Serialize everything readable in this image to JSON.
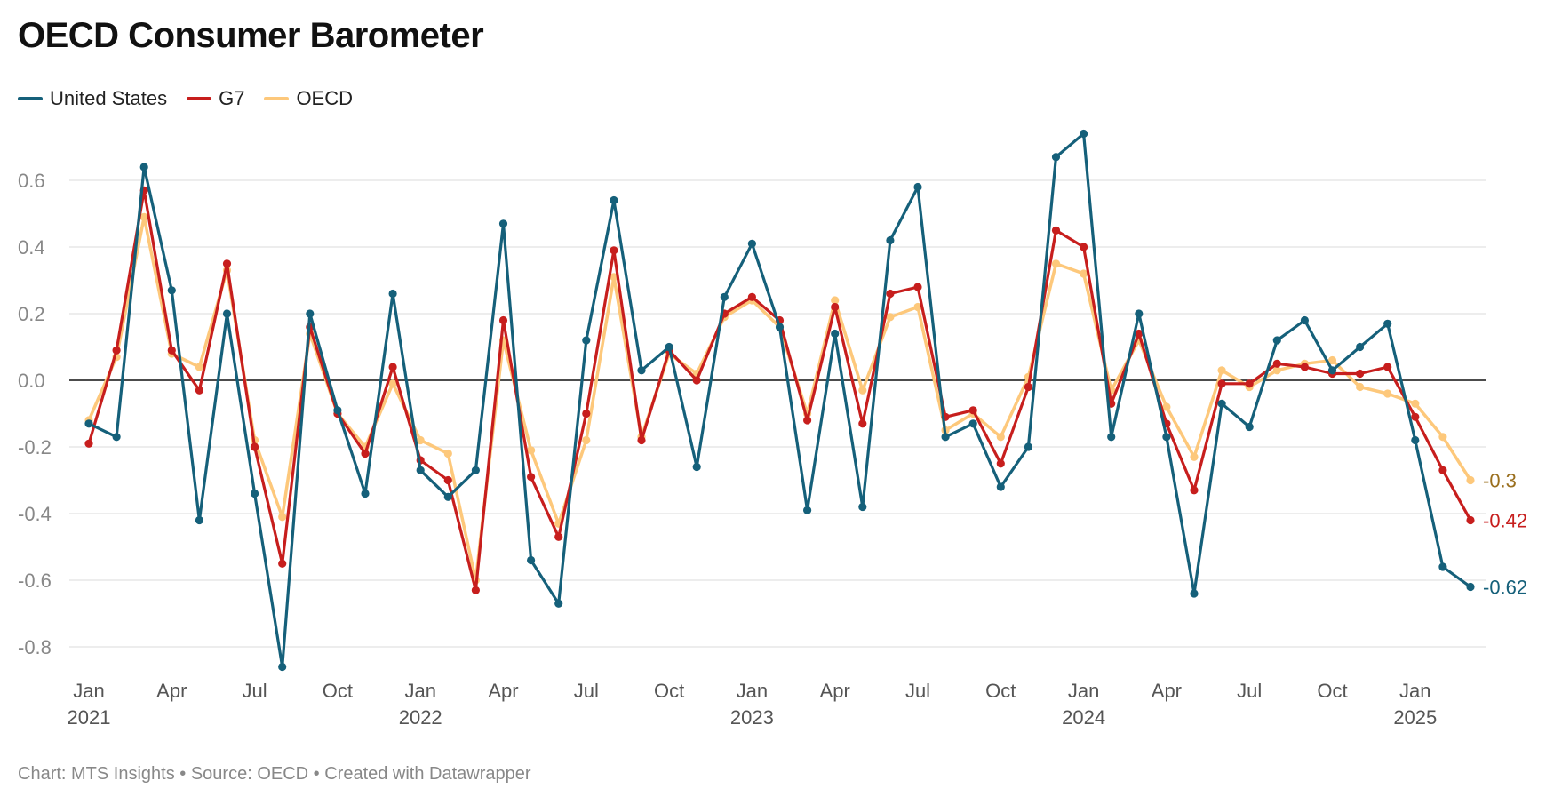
{
  "title": "OECD Consumer Barometer",
  "footer": "Chart: MTS Insights • Source: OECD • Created with Datawrapper",
  "chart_data": {
    "type": "line",
    "title": "OECD Consumer Barometer",
    "xlabel": "",
    "ylabel": "",
    "ylim": [
      -0.8,
      0.6
    ],
    "y_ticks": [
      0.6,
      0.4,
      0.2,
      0.0,
      -0.2,
      -0.4,
      -0.6,
      -0.8
    ],
    "y_tick_labels": [
      "0.6",
      "0.4",
      "0.2",
      "0.0",
      "-0.2",
      "-0.4",
      "-0.6",
      "-0.8"
    ],
    "grid": true,
    "legend_position": "top-left",
    "x": [
      "2021-01",
      "2021-02",
      "2021-03",
      "2021-04",
      "2021-05",
      "2021-06",
      "2021-07",
      "2021-08",
      "2021-09",
      "2021-10",
      "2021-11",
      "2021-12",
      "2022-01",
      "2022-02",
      "2022-03",
      "2022-04",
      "2022-05",
      "2022-06",
      "2022-07",
      "2022-08",
      "2022-09",
      "2022-10",
      "2022-11",
      "2022-12",
      "2023-01",
      "2023-02",
      "2023-03",
      "2023-04",
      "2023-05",
      "2023-06",
      "2023-07",
      "2023-08",
      "2023-09",
      "2023-10",
      "2023-11",
      "2023-12",
      "2024-01",
      "2024-02",
      "2024-03",
      "2024-04",
      "2024-05",
      "2024-06",
      "2024-07",
      "2024-08",
      "2024-09",
      "2024-10",
      "2024-11",
      "2024-12",
      "2025-01",
      "2025-02",
      "2025-03"
    ],
    "x_ticks": [
      {
        "index": 0,
        "month": "Jan",
        "year": "2021"
      },
      {
        "index": 3,
        "month": "Apr",
        "year": ""
      },
      {
        "index": 6,
        "month": "Jul",
        "year": ""
      },
      {
        "index": 9,
        "month": "Oct",
        "year": ""
      },
      {
        "index": 12,
        "month": "Jan",
        "year": "2022"
      },
      {
        "index": 15,
        "month": "Apr",
        "year": ""
      },
      {
        "index": 18,
        "month": "Jul",
        "year": ""
      },
      {
        "index": 21,
        "month": "Oct",
        "year": ""
      },
      {
        "index": 24,
        "month": "Jan",
        "year": "2023"
      },
      {
        "index": 27,
        "month": "Apr",
        "year": ""
      },
      {
        "index": 30,
        "month": "Jul",
        "year": ""
      },
      {
        "index": 33,
        "month": "Oct",
        "year": ""
      },
      {
        "index": 36,
        "month": "Jan",
        "year": "2024"
      },
      {
        "index": 39,
        "month": "Apr",
        "year": ""
      },
      {
        "index": 42,
        "month": "Jul",
        "year": ""
      },
      {
        "index": 45,
        "month": "Oct",
        "year": ""
      },
      {
        "index": 48,
        "month": "Jan",
        "year": "2025"
      }
    ],
    "series": [
      {
        "name": "OECD",
        "color": "#fdc87b",
        "end_label": "-0.3",
        "end_label_color": "#9a6f1e",
        "values": [
          -0.12,
          0.07,
          0.49,
          0.08,
          0.04,
          0.33,
          -0.18,
          -0.41,
          0.14,
          -0.1,
          -0.2,
          -0.01,
          -0.18,
          -0.22,
          -0.6,
          0.12,
          -0.21,
          -0.43,
          -0.18,
          0.31,
          -0.17,
          0.08,
          0.02,
          0.19,
          0.24,
          0.16,
          -0.1,
          0.24,
          -0.03,
          0.19,
          0.22,
          -0.15,
          -0.1,
          -0.17,
          0.01,
          0.35,
          0.32,
          -0.03,
          0.12,
          -0.08,
          -0.23,
          0.03,
          -0.02,
          0.03,
          0.05,
          0.06,
          -0.02,
          -0.04,
          -0.07,
          -0.17,
          -0.3
        ]
      },
      {
        "name": "G7",
        "color": "#c71e1d",
        "end_label": "-0.42",
        "end_label_color": "#c71e1d",
        "values": [
          -0.19,
          0.09,
          0.57,
          0.09,
          -0.03,
          0.35,
          -0.2,
          -0.55,
          0.16,
          -0.1,
          -0.22,
          0.04,
          -0.24,
          -0.3,
          -0.63,
          0.18,
          -0.29,
          -0.47,
          -0.1,
          0.39,
          -0.18,
          0.09,
          0.0,
          0.2,
          0.25,
          0.18,
          -0.12,
          0.22,
          -0.13,
          0.26,
          0.28,
          -0.11,
          -0.09,
          -0.25,
          -0.02,
          0.45,
          0.4,
          -0.07,
          0.14,
          -0.13,
          -0.33,
          -0.01,
          -0.01,
          0.05,
          0.04,
          0.02,
          0.02,
          0.04,
          -0.11,
          -0.27,
          -0.42
        ]
      },
      {
        "name": "United States",
        "color": "#15607a",
        "end_label": "-0.62",
        "end_label_color": "#15607a",
        "values": [
          -0.13,
          -0.17,
          0.64,
          0.27,
          -0.42,
          0.2,
          -0.34,
          -0.86,
          0.2,
          -0.09,
          -0.34,
          0.26,
          -0.27,
          -0.35,
          -0.27,
          0.47,
          -0.54,
          -0.67,
          0.12,
          0.54,
          0.03,
          0.1,
          -0.26,
          0.25,
          0.41,
          0.16,
          -0.39,
          0.14,
          -0.38,
          0.42,
          0.58,
          -0.17,
          -0.13,
          -0.32,
          -0.2,
          0.67,
          0.74,
          -0.17,
          0.2,
          -0.17,
          -0.64,
          -0.07,
          -0.14,
          0.12,
          0.18,
          0.03,
          0.1,
          0.17,
          -0.18,
          -0.56,
          -0.62
        ]
      }
    ]
  },
  "legend": [
    {
      "name": "United States",
      "color": "#15607a"
    },
    {
      "name": "G7",
      "color": "#c71e1d"
    },
    {
      "name": "OECD",
      "color": "#fdc87b"
    }
  ]
}
